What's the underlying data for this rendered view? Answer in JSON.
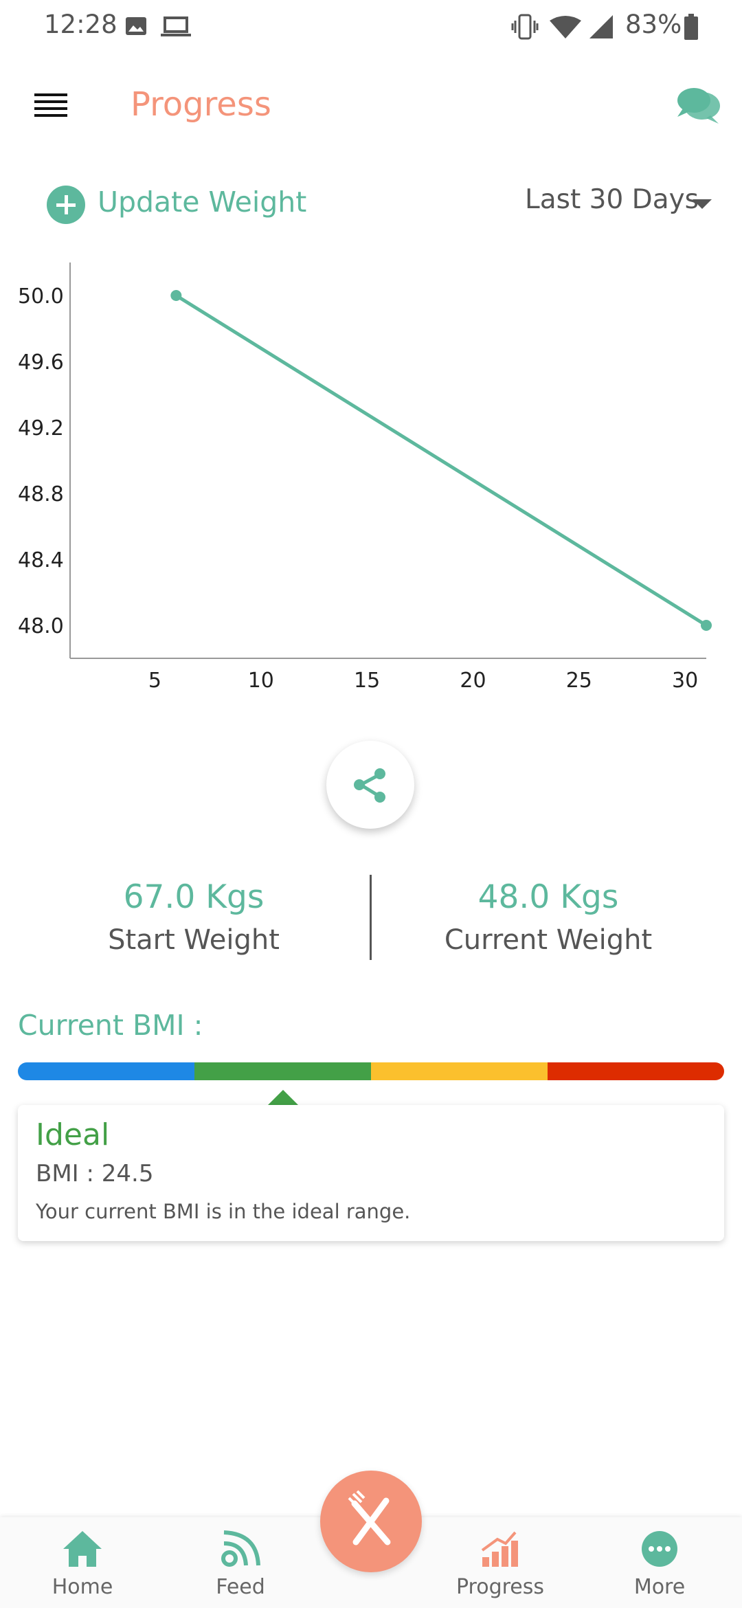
{
  "status_bar": {
    "time": "12:28",
    "battery": "83%",
    "icons": [
      "image-icon",
      "laptop-icon",
      "vibrate-icon",
      "wifi-icon",
      "signal-icon",
      "battery-icon"
    ]
  },
  "app_bar": {
    "title": "Progress",
    "menu_icon": "hamburger-menu-icon",
    "chat_icon": "chat-bubbles-icon"
  },
  "controls": {
    "update_weight_label": "Update Weight",
    "range_selected": "Last 30 Days"
  },
  "chart_data": {
    "type": "line",
    "x": [
      6,
      31
    ],
    "y": [
      50.0,
      48.0
    ],
    "xticks": [
      5,
      10,
      15,
      20,
      25,
      30
    ],
    "yticks": [
      "50.0",
      "49.6",
      "49.2",
      "48.8",
      "48.4",
      "48.0"
    ],
    "xlim": [
      1,
      31
    ],
    "ylim": [
      47.8,
      50.2
    ],
    "color": "#5DB89D",
    "grid": false
  },
  "weights": {
    "start_value": "67.0 Kgs",
    "start_label": "Start Weight",
    "current_value": "48.0 Kgs",
    "current_label": "Current Weight"
  },
  "bmi": {
    "title": "Current BMI :",
    "scale_colors": [
      "#1E88E5",
      "#43A047",
      "#FBC02D",
      "#DD2C00"
    ],
    "status": "Ideal",
    "value_text": "BMI : 24.5",
    "description": "Your current BMI is in the ideal range."
  },
  "nav": {
    "items": [
      {
        "label": "Home",
        "icon": "home-icon"
      },
      {
        "label": "Feed",
        "icon": "feed-icon"
      },
      {
        "label": "Progress",
        "icon": "progress-chart-icon"
      },
      {
        "label": "More",
        "icon": "more-icon"
      }
    ],
    "fab_icon": "fork-knife-icon"
  },
  "colors": {
    "accent": "#5DB89D",
    "brand": "#F4947A"
  }
}
